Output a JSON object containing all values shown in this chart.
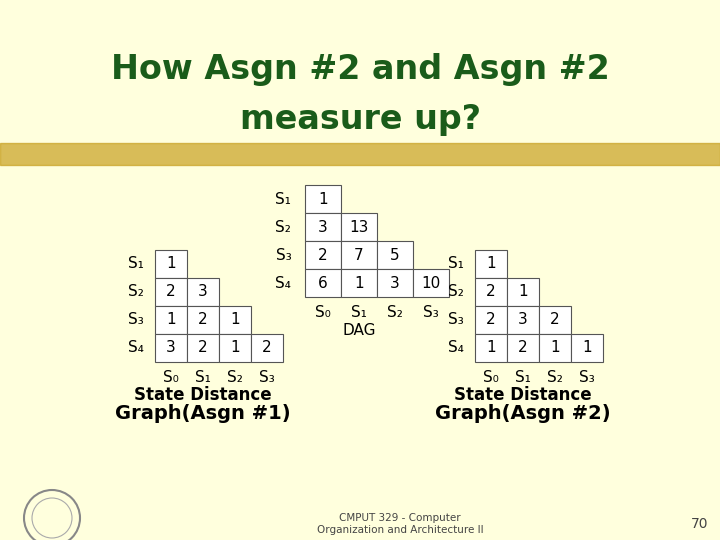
{
  "title_line1": "How Asgn #2 and Asgn #2",
  "title_line2": "measure up?",
  "title_color": "#1a5c1a",
  "bg_color": "#ffffdd",
  "dag_title": "DAG",
  "dag_rows": [
    {
      "label": "S₁",
      "values": [
        "1"
      ]
    },
    {
      "label": "S₂",
      "values": [
        "3",
        "13"
      ]
    },
    {
      "label": "S₃",
      "values": [
        "2",
        "7",
        "5"
      ]
    },
    {
      "label": "S₄",
      "values": [
        "6",
        "1",
        "3",
        "10"
      ]
    }
  ],
  "dag_col_labels": [
    "S₀",
    "S₁",
    "S₂",
    "S₃"
  ],
  "left_title_line1": "State Distance",
  "left_title_line2": "Graph(Asgn #1)",
  "left_rows": [
    {
      "label": "S₁",
      "values": [
        "1"
      ]
    },
    {
      "label": "S₂",
      "values": [
        "2",
        "3"
      ]
    },
    {
      "label": "S₃",
      "values": [
        "1",
        "2",
        "1"
      ]
    },
    {
      "label": "S₄",
      "values": [
        "3",
        "2",
        "1",
        "2"
      ]
    }
  ],
  "left_col_labels": [
    "S₀",
    "S₁",
    "S₂",
    "S₃"
  ],
  "right_title_line1": "State Distance",
  "right_title_line2": "Graph(Asgn #2)",
  "right_rows": [
    {
      "label": "S₁",
      "values": [
        "1"
      ]
    },
    {
      "label": "S₂",
      "values": [
        "2",
        "1"
      ]
    },
    {
      "label": "S₃",
      "values": [
        "2",
        "3",
        "2"
      ]
    },
    {
      "label": "S₄",
      "values": [
        "1",
        "2",
        "1",
        "1"
      ]
    }
  ],
  "right_col_labels": [
    "S₀",
    "S₁",
    "S₂",
    "S₃"
  ],
  "footer_text_line1": "CMPUT 329 - Computer",
  "footer_text_line2": "Organization and Architecture II",
  "page_num": "70",
  "highlight_color": "#c8a020",
  "table_text_color": "#000000",
  "cell_border": "#555555"
}
